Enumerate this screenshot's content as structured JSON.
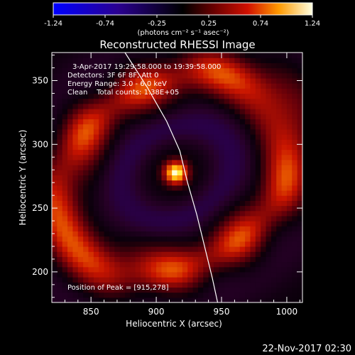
{
  "chart_data": {
    "type": "heatmap",
    "title": "Reconstructed RHESSI Image",
    "xlabel": "Heliocentric X (arcsec)",
    "ylabel": "Heliocentric Y (arcsec)",
    "xlim": [
      820,
      1012
    ],
    "ylim": [
      176,
      372
    ],
    "x_ticks": [
      850,
      900,
      950,
      1000
    ],
    "y_ticks": [
      200,
      250,
      300,
      350
    ],
    "colorbar": {
      "ticks": [
        "-1.24",
        "-0.74",
        "-0.25",
        "0.25",
        "0.74",
        "1.24"
      ],
      "units": "(photons cm⁻² s⁻¹ asec⁻²)",
      "range": [
        -1.24,
        1.24
      ]
    },
    "annotations": {
      "time": "3-Apr-2017 19:29:58.000 to 19:39:58.000",
      "detectors": "Detectors: 3F 6F 8F, Att 0",
      "energy": "Energy Range: 3.0 - 6.0 keV",
      "clean": "Clean    Total counts: 1.38E+05",
      "peak": "Position of Peak = [915,278]"
    },
    "peak_position": [
      915,
      278
    ],
    "peak_value": 1.24,
    "limb_curve": [
      [
        876,
        372
      ],
      [
        893,
        345
      ],
      [
        908,
        318
      ],
      [
        918,
        295
      ],
      [
        924,
        270
      ],
      [
        931,
        245
      ],
      [
        937,
        220
      ],
      [
        943,
        195
      ],
      [
        947,
        176
      ]
    ],
    "features": [
      {
        "name": "peak-source",
        "x": 915,
        "y": 278,
        "sigma": 6,
        "amplitude": 1.24
      },
      {
        "name": "arc-upper-right",
        "x": 975,
        "y": 330,
        "amplitude": 0.55
      },
      {
        "name": "arc-lower-left",
        "x": 860,
        "y": 230,
        "amplitude": 0.5
      },
      {
        "name": "negative-lobe-upper",
        "x": 950,
        "y": 300,
        "amplitude": -0.3
      },
      {
        "name": "negative-lobe-lower",
        "x": 880,
        "y": 255,
        "amplitude": -0.3
      }
    ]
  },
  "footer": {
    "timestamp": "22-Nov-2017 02:30"
  }
}
